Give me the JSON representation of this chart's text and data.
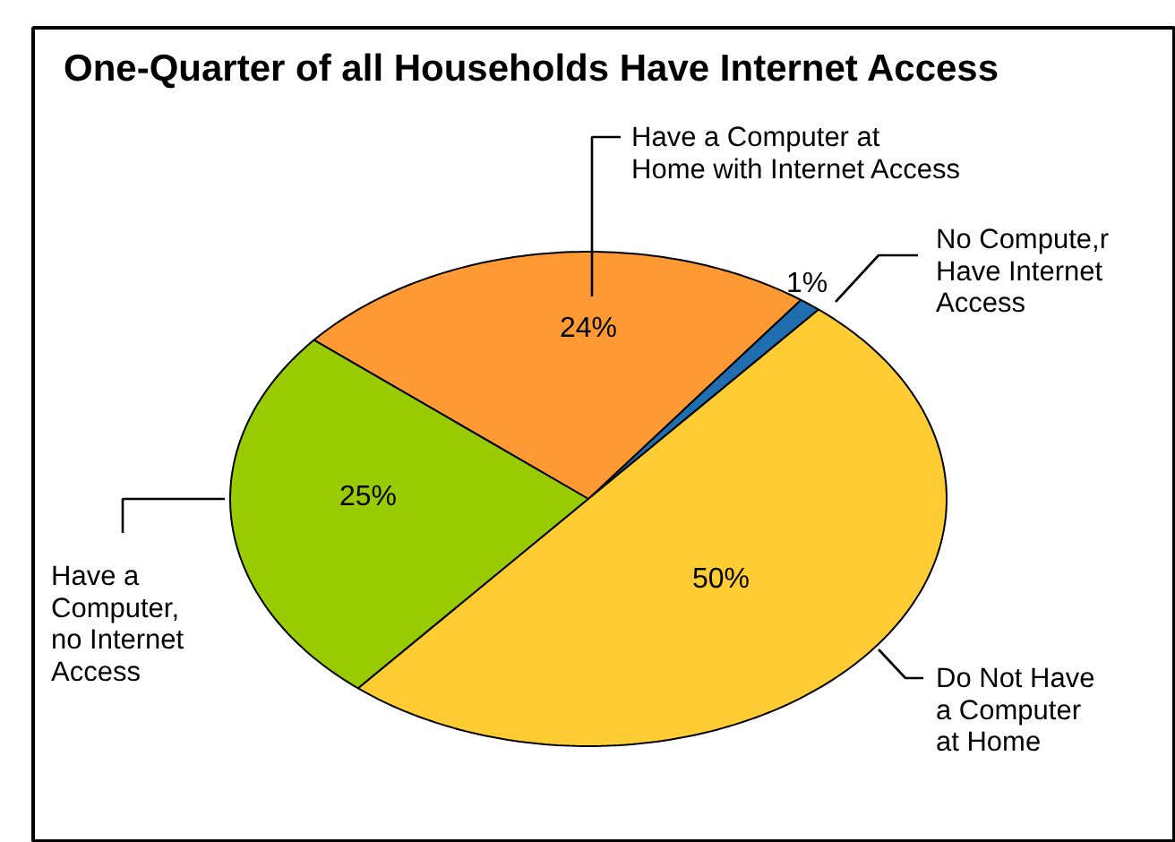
{
  "chart_data": {
    "type": "pie",
    "title": "One-Quarter of all Households Have Internet Access",
    "categories": [
      "No Compute,r\nHave Internet\nAccess",
      "Have a Computer at\nHome with Internet Access",
      "Have a\nComputer,\nno Internet\nAccess",
      "Do Not Have\na Computer\nat Home"
    ],
    "values": [
      1,
      24,
      25,
      50
    ],
    "colors": [
      "#1f6fb0",
      "#ff9933",
      "#99cc00",
      "#ffcc33"
    ],
    "value_labels": [
      "1%",
      "24%",
      "25%",
      "50%"
    ]
  }
}
